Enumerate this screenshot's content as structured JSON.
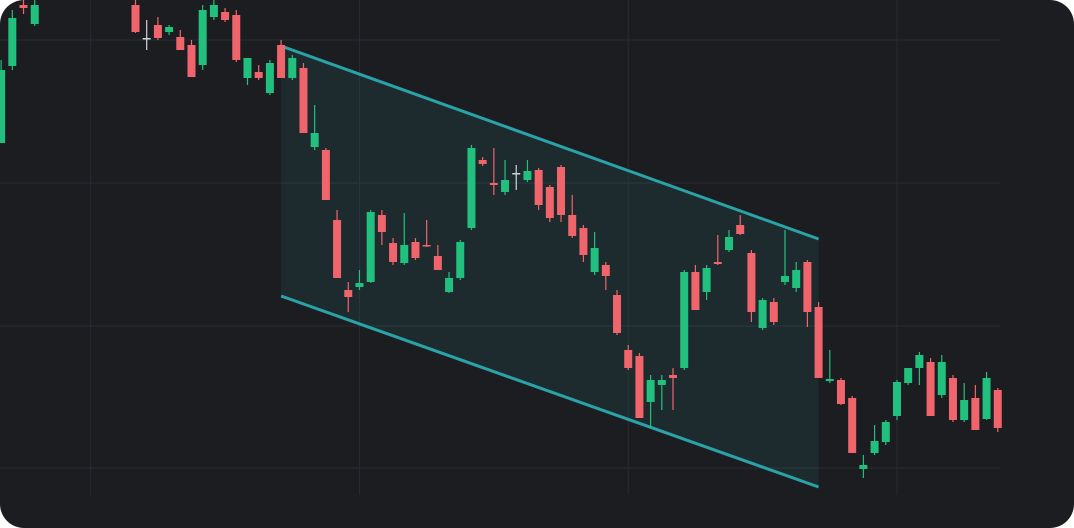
{
  "chart_data": {
    "type": "candlestick",
    "x": [
      0,
      1,
      2,
      3,
      12,
      13,
      14,
      15,
      16,
      17,
      18,
      19,
      20,
      21,
      22,
      23,
      24,
      25,
      26,
      27,
      28,
      29,
      30,
      31,
      32,
      33,
      34,
      35,
      36,
      37,
      38,
      39,
      40,
      41,
      42,
      43,
      44,
      45,
      46,
      47,
      48,
      49,
      50,
      51,
      52,
      53,
      54,
      55,
      56,
      57,
      58,
      59,
      60,
      61,
      62,
      63,
      64,
      65,
      66,
      67,
      68,
      69,
      70,
      71,
      72,
      73,
      74,
      75,
      76,
      77,
      78,
      79,
      80,
      81,
      82,
      83,
      84,
      85,
      86,
      87,
      88,
      89
    ],
    "open": [
      385,
      462,
      523,
      504,
      523,
      490,
      503,
      496,
      491,
      483,
      463,
      511,
      516,
      513,
      450,
      456,
      435,
      483,
      450,
      460,
      381,
      378,
      308,
      238,
      241,
      246,
      313,
      285,
      265,
      286,
      283,
      272,
      236,
      250,
      300,
      368,
      345,
      336,
      355,
      348,
      358,
      341,
      361,
      313,
      300,
      256,
      263,
      233,
      178,
      172,
      126,
      143,
      153,
      160,
      256,
      236,
      266,
      278,
      303,
      275,
      200,
      226,
      246,
      240,
      266,
      221,
      147,
      148,
      130,
      59,
      75,
      86,
      112,
      145,
      160,
      166,
      133,
      150,
      108,
      130,
      109,
      138
    ],
    "high": [
      468,
      518,
      528,
      528,
      528,
      508,
      511,
      503,
      498,
      488,
      523,
      528,
      520,
      518,
      470,
      463,
      468,
      488,
      473,
      465,
      423,
      380,
      318,
      246,
      258,
      318,
      318,
      290,
      315,
      290,
      308,
      283,
      256,
      288,
      383,
      371,
      380,
      368,
      363,
      368,
      360,
      343,
      363,
      333,
      303,
      296,
      266,
      238,
      183,
      175,
      153,
      153,
      160,
      258,
      263,
      263,
      293,
      298,
      313,
      278,
      230,
      230,
      298,
      266,
      268,
      226,
      178,
      150,
      132,
      73,
      103,
      108,
      148,
      160,
      176,
      170,
      173,
      153,
      145,
      143,
      156,
      140
    ],
    "low": [
      385,
      458,
      514,
      502,
      495,
      478,
      488,
      493,
      478,
      451,
      458,
      508,
      506,
      466,
      443,
      448,
      433,
      450,
      448,
      395,
      378,
      328,
      250,
      216,
      238,
      245,
      283,
      263,
      263,
      268,
      281,
      258,
      235,
      248,
      298,
      362,
      333,
      333,
      338,
      346,
      318,
      306,
      306,
      290,
      266,
      253,
      238,
      193,
      158,
      110,
      100,
      118,
      118,
      158,
      218,
      228,
      263,
      276,
      293,
      206,
      198,
      203,
      243,
      236,
      201,
      150,
      145,
      123,
      75,
      50,
      73,
      83,
      108,
      143,
      143,
      112,
      130,
      106,
      106,
      98,
      108,
      96
    ],
    "close": [
      458,
      510,
      520,
      523,
      496,
      490,
      490,
      501,
      478,
      451,
      518,
      523,
      508,
      468,
      470,
      450,
      465,
      450,
      470,
      395,
      395,
      328,
      250,
      231,
      245,
      316,
      296,
      266,
      283,
      270,
      282,
      258,
      250,
      286,
      380,
      364,
      343,
      348,
      355,
      357,
      323,
      310,
      313,
      292,
      273,
      280,
      252,
      195,
      160,
      110,
      148,
      148,
      150,
      256,
      218,
      260,
      264,
      291,
      294,
      216,
      228,
      206,
      252,
      258,
      216,
      150,
      149,
      124,
      75,
      63,
      87,
      106,
      146,
      160,
      173,
      112,
      166,
      108,
      128,
      98,
      150,
      100
    ],
    "up_color": "#22c07e",
    "down_color": "#f0646c",
    "flat_color": "#d1d4dc",
    "xlim": [
      -0.1,
      89.2
    ],
    "ylim": [
      0,
      528
    ],
    "xticks": [
      8,
      32,
      56,
      80
    ],
    "yticks": [
      60,
      202,
      345,
      488
    ],
    "grid": true,
    "channel": {
      "upper": [
        [
          25,
          482
        ],
        [
          73,
          289
        ]
      ],
      "lower": [
        [
          25,
          232
        ],
        [
          73,
          41
        ]
      ],
      "color": "#2aa3a8"
    }
  }
}
